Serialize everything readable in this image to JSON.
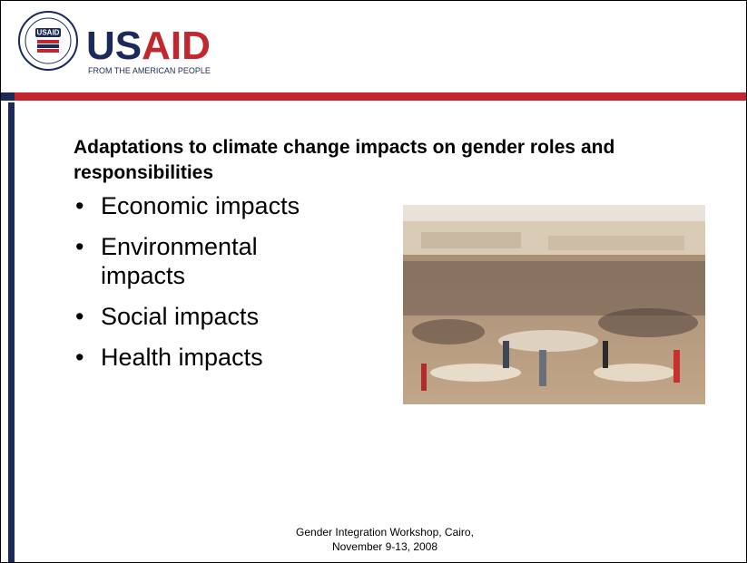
{
  "header": {
    "seal_label": "USAID",
    "logo_us": "US",
    "logo_aid": "AID",
    "tagline": "FROM THE AMERICAN PEOPLE"
  },
  "slide": {
    "title": "Adaptations to climate change impacts on gender roles and responsibilities",
    "bullets": [
      "Economic impacts",
      "Environmental impacts",
      "Social impacts",
      "Health impacts"
    ]
  },
  "footer": {
    "lines": [
      "Gender Integration Workshop, Cairo,",
      "November 9-13, 2008"
    ]
  }
}
